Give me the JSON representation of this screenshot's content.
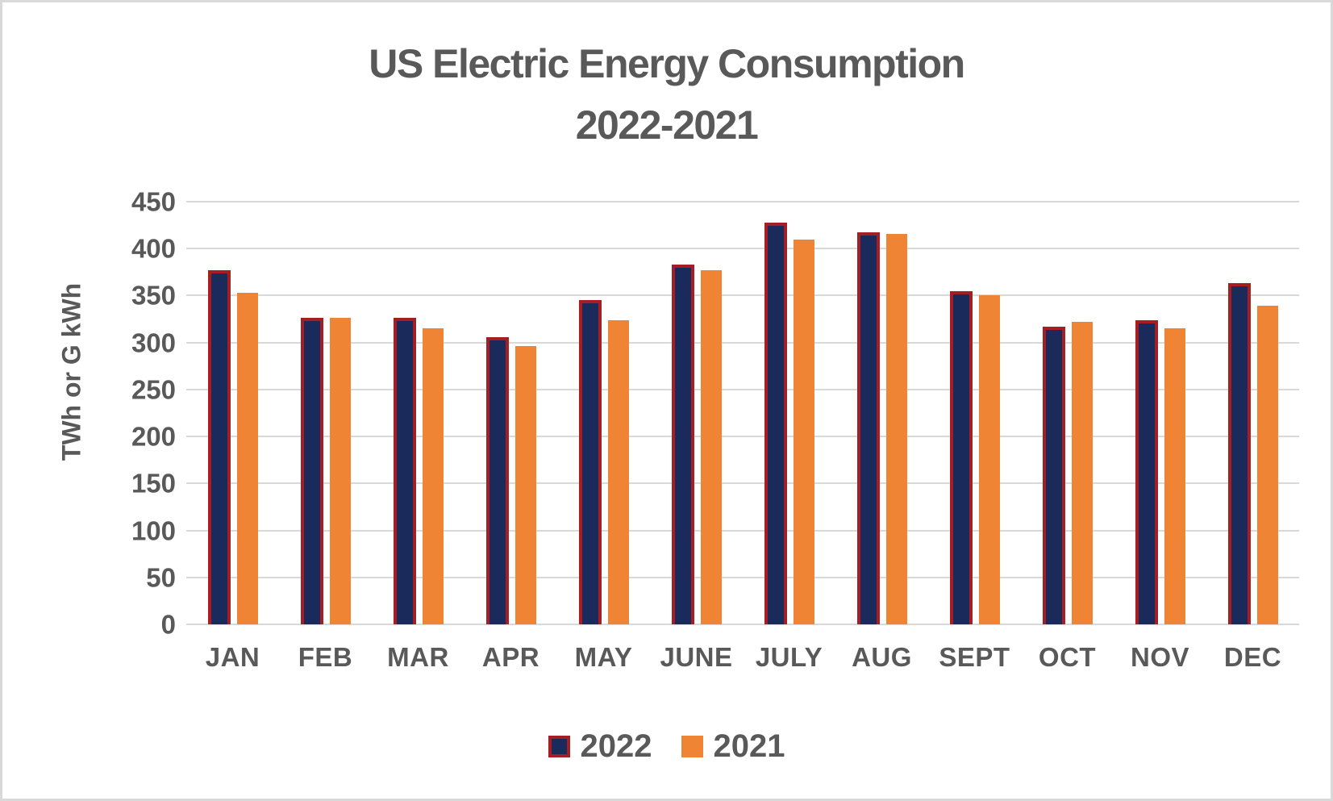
{
  "title": {
    "line1": "US Electric Energy Consumption",
    "line2": "2022-2021"
  },
  "chart_data": {
    "type": "bar",
    "title": "US Electric Energy Consumption 2022-2021",
    "xlabel": "",
    "ylabel": "TWh or G kWh",
    "categories": [
      "JAN",
      "FEB",
      "MAR",
      "APR",
      "MAY",
      "JUNE",
      "JULY",
      "AUG",
      "SEPT",
      "OCT",
      "NOV",
      "DEC"
    ],
    "series": [
      {
        "name": "2022",
        "color": "#1a2a5a",
        "border_color": "#a41e24",
        "values": [
          377,
          326,
          326,
          306,
          345,
          383,
          428,
          417,
          355,
          317,
          324,
          363
        ]
      },
      {
        "name": "2021",
        "color": "#ee8434",
        "border_color": null,
        "values": [
          353,
          326,
          315,
          296,
          324,
          377,
          410,
          416,
          350,
          322,
          315,
          339
        ]
      }
    ],
    "ylim": [
      0,
      450
    ],
    "yticks": [
      0,
      50,
      100,
      150,
      200,
      250,
      300,
      350,
      400,
      450
    ],
    "grid": true,
    "gridline_color": "#d9d9d9",
    "text_color": "#595959",
    "legend_position": "bottom"
  }
}
